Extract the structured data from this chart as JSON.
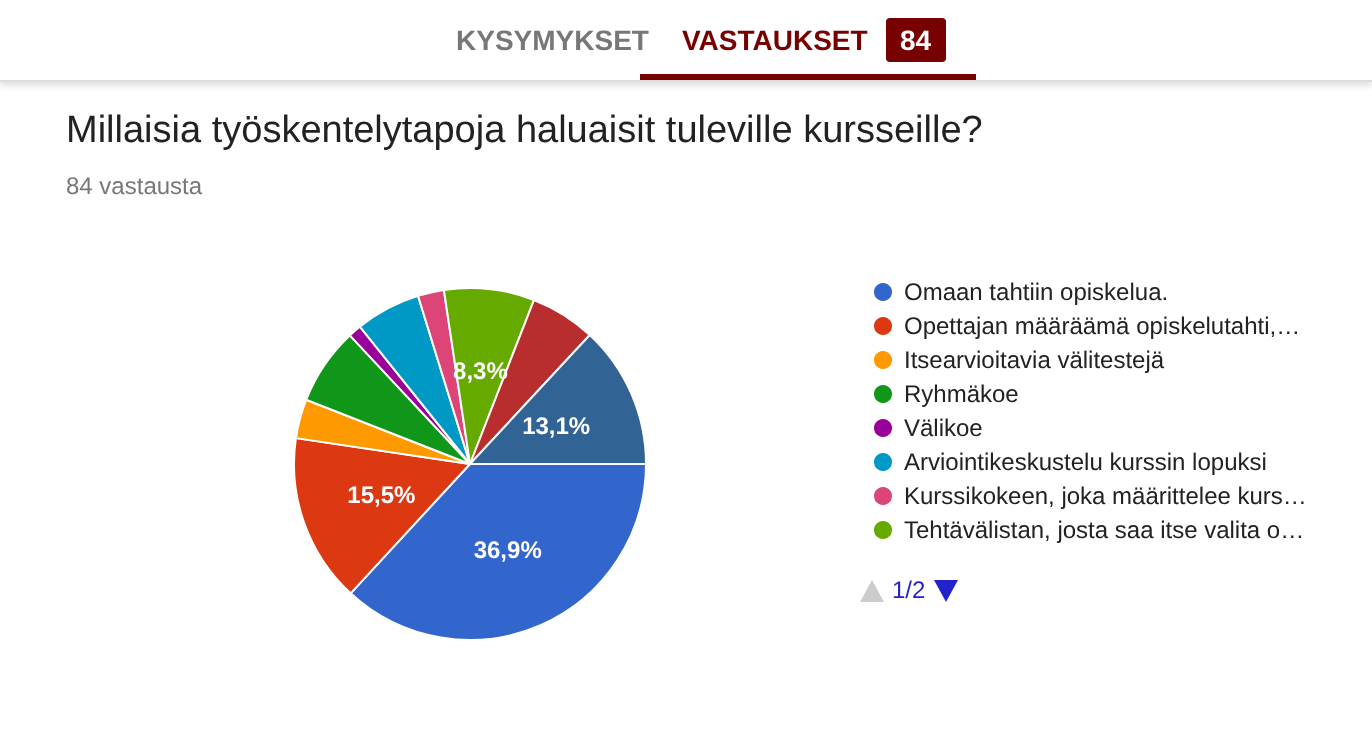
{
  "chart_data": {
    "type": "pie",
    "title": "Millaisia työskentelytapoja haluaisit tuleville kursseille?",
    "subtitle": "84 vastausta",
    "categories": [
      "Omaan tahtiin opiskelua.",
      "Opettajan määräämä opiskelutahti,…",
      "Itsearvioitavia välitestejä",
      "Ryhmäkoe",
      "Välikoe",
      "Arviointikeskustelu kurssin lopuksi",
      "Kurssikokeen, joka määrittelee kurs…",
      "Tehtävälistan, josta saa itse valita o…",
      null,
      null
    ],
    "values": [
      36.9,
      15.5,
      3.6,
      7.1,
      1.2,
      6.0,
      2.4,
      8.3,
      6.0,
      13.1
    ],
    "colors": [
      "#3366cc",
      "#dc3912",
      "#ff9900",
      "#109618",
      "#990099",
      "#0099c6",
      "#dd4477",
      "#66aa00",
      "#b82e2e",
      "#316395"
    ],
    "value_labels": [
      "36,9%",
      "15,5%",
      null,
      null,
      null,
      null,
      null,
      "8,3%",
      null,
      "13,1%"
    ],
    "legend": "right",
    "annotations": [
      "KYSYMYKSET",
      "VASTAUKSET",
      "84",
      "1/2"
    ]
  }
}
